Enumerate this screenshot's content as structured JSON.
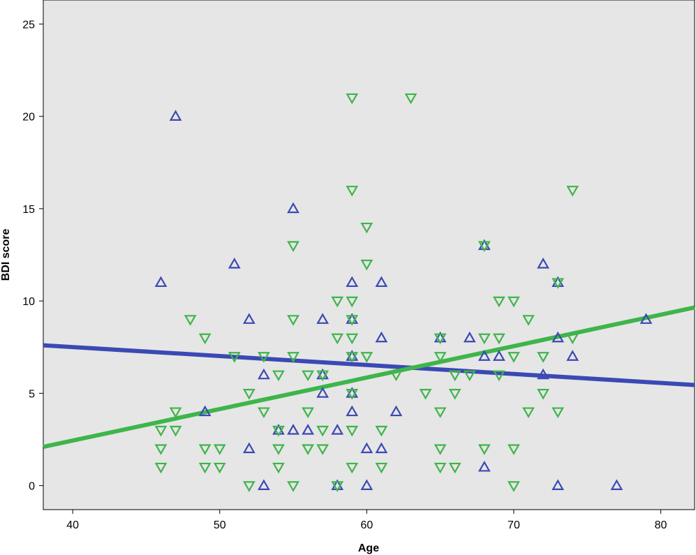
{
  "chart_data": {
    "type": "scatter",
    "title": "",
    "xlabel": "Age",
    "ylabel": "BDI score",
    "xlim": [
      38,
      82.3
    ],
    "ylim": [
      -1.3,
      26.3
    ],
    "xticks": [
      40,
      50,
      60,
      70,
      80
    ],
    "yticks": [
      0,
      5,
      10,
      15,
      20,
      25
    ],
    "grid": false,
    "background_color": "#e6e6e6",
    "series": [
      {
        "marker": "triangle-up",
        "color": "#3b49b4",
        "points": [
          [
            46,
            11
          ],
          [
            47,
            20
          ],
          [
            49,
            4
          ],
          [
            51,
            12
          ],
          [
            52,
            9
          ],
          [
            52,
            2
          ],
          [
            53,
            6
          ],
          [
            53,
            0
          ],
          [
            54,
            3
          ],
          [
            55,
            15
          ],
          [
            55,
            3
          ],
          [
            56,
            3
          ],
          [
            57,
            9
          ],
          [
            57,
            6
          ],
          [
            57,
            5
          ],
          [
            58,
            3
          ],
          [
            58,
            0
          ],
          [
            59,
            11
          ],
          [
            59,
            9
          ],
          [
            59,
            7
          ],
          [
            59,
            5
          ],
          [
            59,
            4
          ],
          [
            60,
            0
          ],
          [
            60,
            2
          ],
          [
            61,
            11
          ],
          [
            61,
            8
          ],
          [
            61,
            2
          ],
          [
            62,
            4
          ],
          [
            65,
            8
          ],
          [
            67,
            8
          ],
          [
            68,
            13
          ],
          [
            68,
            7
          ],
          [
            68,
            1
          ],
          [
            69,
            7
          ],
          [
            72,
            12
          ],
          [
            72,
            6
          ],
          [
            73,
            11
          ],
          [
            73,
            8
          ],
          [
            73,
            0
          ],
          [
            74,
            7
          ],
          [
            77,
            0
          ],
          [
            79,
            9
          ]
        ],
        "fit_line": [
          [
            38,
            7.6
          ],
          [
            82.3,
            5.45
          ]
        ]
      },
      {
        "marker": "triangle-down",
        "color": "#3eb54a",
        "points": [
          [
            46,
            3
          ],
          [
            46,
            2
          ],
          [
            46,
            1
          ],
          [
            47,
            4
          ],
          [
            47,
            3
          ],
          [
            48,
            9
          ],
          [
            49,
            8
          ],
          [
            49,
            2
          ],
          [
            49,
            1
          ],
          [
            50,
            2
          ],
          [
            50,
            1
          ],
          [
            51,
            7
          ],
          [
            52,
            5
          ],
          [
            52,
            0
          ],
          [
            53,
            7
          ],
          [
            53,
            4
          ],
          [
            54,
            6
          ],
          [
            54,
            3
          ],
          [
            54,
            2
          ],
          [
            54,
            1
          ],
          [
            55,
            13
          ],
          [
            55,
            9
          ],
          [
            55,
            7
          ],
          [
            55,
            0
          ],
          [
            56,
            6
          ],
          [
            56,
            4
          ],
          [
            56,
            2
          ],
          [
            57,
            6
          ],
          [
            57,
            3
          ],
          [
            57,
            2
          ],
          [
            58,
            10
          ],
          [
            58,
            8
          ],
          [
            58,
            0
          ],
          [
            59,
            21
          ],
          [
            59,
            16
          ],
          [
            59,
            10
          ],
          [
            59,
            9
          ],
          [
            59,
            8
          ],
          [
            59,
            7
          ],
          [
            59,
            5
          ],
          [
            59,
            3
          ],
          [
            59,
            1
          ],
          [
            60,
            14
          ],
          [
            60,
            12
          ],
          [
            60,
            7
          ],
          [
            61,
            3
          ],
          [
            61,
            1
          ],
          [
            62,
            6
          ],
          [
            63,
            21
          ],
          [
            64,
            5
          ],
          [
            65,
            8
          ],
          [
            65,
            7
          ],
          [
            65,
            4
          ],
          [
            65,
            2
          ],
          [
            65,
            1
          ],
          [
            66,
            6
          ],
          [
            66,
            5
          ],
          [
            66,
            1
          ],
          [
            67,
            6
          ],
          [
            68,
            13
          ],
          [
            68,
            8
          ],
          [
            68,
            2
          ],
          [
            69,
            10
          ],
          [
            69,
            8
          ],
          [
            69,
            6
          ],
          [
            70,
            10
          ],
          [
            70,
            7
          ],
          [
            70,
            2
          ],
          [
            70,
            0
          ],
          [
            71,
            9
          ],
          [
            71,
            4
          ],
          [
            72,
            7
          ],
          [
            72,
            5
          ],
          [
            73,
            11
          ],
          [
            73,
            4
          ],
          [
            74,
            16
          ],
          [
            74,
            8
          ]
        ],
        "fit_line": [
          [
            38,
            2.1
          ],
          [
            82.3,
            9.65
          ]
        ]
      }
    ]
  }
}
